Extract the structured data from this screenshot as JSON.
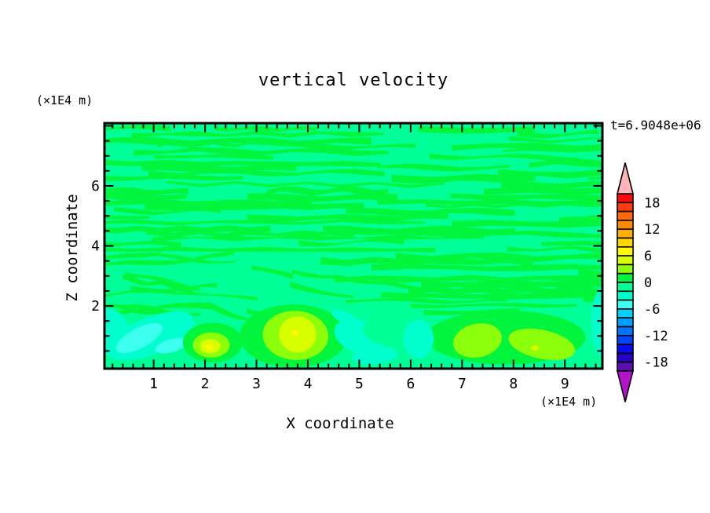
{
  "chart_data": {
    "type": "heatmap",
    "title": "vertical velocity",
    "xlabel": "X coordinate",
    "ylabel": "Z coordinate",
    "x_unit": "(×1E4 m)",
    "z_unit": "(×1E4 m)",
    "time": "t=6.9048e+06",
    "contour_interval": 2,
    "axes": {
      "x": {
        "range": [
          0.04,
          9.73
        ],
        "major": [
          1,
          2,
          3,
          4,
          5,
          6,
          7,
          8,
          9
        ],
        "labels": [
          "1",
          "2",
          "3",
          "4",
          "5",
          "6",
          "7",
          "8",
          "9"
        ],
        "minor_step": 0.2
      },
      "z": {
        "range": [
          -0.09,
          8.09
        ],
        "major": [
          2,
          4,
          6,
          8
        ],
        "labels": [
          "2",
          "4",
          "6"
        ],
        "labeled_values": [
          2,
          4,
          6
        ],
        "minor_step": 0.5
      }
    },
    "levels": [
      {
        "from": 18,
        "to": 20,
        "color": "#FA0A0A"
      },
      {
        "from": 16,
        "to": 18,
        "color": "#FF3C0A"
      },
      {
        "from": 14,
        "to": 16,
        "color": "#FF690A"
      },
      {
        "from": 12,
        "to": 14,
        "color": "#FF8C00"
      },
      {
        "from": 10,
        "to": 12,
        "color": "#FFAF00"
      },
      {
        "from": 8,
        "to": 10,
        "color": "#FFD700"
      },
      {
        "from": 6,
        "to": 8,
        "color": "#FFFA00"
      },
      {
        "from": 4,
        "to": 6,
        "color": "#D7FF00"
      },
      {
        "from": 2,
        "to": 4,
        "color": "#8CFF0A"
      },
      {
        "from": 0,
        "to": 2,
        "color": "#00F53C"
      },
      {
        "from": -2,
        "to": 0,
        "color": "#00FF96"
      },
      {
        "from": -4,
        "to": -2,
        "color": "#00FFCD"
      },
      {
        "from": -6,
        "to": -4,
        "color": "#3CFFF0"
      },
      {
        "from": -8,
        "to": -6,
        "color": "#00D2FF"
      },
      {
        "from": -10,
        "to": -8,
        "color": "#00A0FF"
      },
      {
        "from": -12,
        "to": -10,
        "color": "#0073FF"
      },
      {
        "from": -14,
        "to": -12,
        "color": "#0046FF"
      },
      {
        "from": -16,
        "to": -14,
        "color": "#0A0AF0"
      },
      {
        "from": -18,
        "to": -16,
        "color": "#2800C8"
      },
      {
        "from": -20,
        "to": -18,
        "color": "#5A0FAF"
      }
    ],
    "colorbar": {
      "tick_labels": [
        "18",
        "12",
        "6",
        "0",
        "-6",
        "-12",
        "-18"
      ],
      "tick_values": [
        18,
        12,
        6,
        0,
        -6,
        -12,
        -18
      ],
      "over_color": "#FFB4B9",
      "under_color": "#B414C8"
    },
    "field": {
      "description": "Near-zero wavy horizontal bands over most of the domain alternating between the 0..2 and -2..0 contour bands; stronger updraft/downdraft cells below z=2.",
      "stripe_band_positive": "#00F53C",
      "stripe_band_negative": "#00FF96",
      "features": [
        {
          "band_from": -4,
          "x": 0.02,
          "z": 1.15,
          "rx": 0.5,
          "rz": 0.8,
          "rot": 0
        },
        {
          "band_from": -4,
          "x": 0.95,
          "z": 1.0,
          "rx": 0.9,
          "rz": 0.62,
          "rot": -22
        },
        {
          "band_from": -6,
          "x": 0.72,
          "z": 0.93,
          "rx": 0.5,
          "rz": 0.34,
          "rot": -28
        },
        {
          "band_from": -6,
          "x": 1.35,
          "z": 0.68,
          "rx": 0.33,
          "rz": 0.22,
          "rot": -15
        },
        {
          "band_from": 0,
          "x": 2.15,
          "z": 0.78,
          "rx": 0.58,
          "rz": 0.66,
          "rot": 0
        },
        {
          "band_from": 2,
          "x": 2.12,
          "z": 0.7,
          "rx": 0.36,
          "rz": 0.42,
          "rot": 0
        },
        {
          "band_from": 4,
          "x": 2.1,
          "z": 0.66,
          "rx": 0.2,
          "rz": 0.24,
          "rot": 0
        },
        {
          "band_from": 6,
          "x": 2.08,
          "z": 0.63,
          "rx": 0.08,
          "rz": 0.1,
          "rot": 0
        },
        {
          "band_from": 0,
          "x": 3.72,
          "z": 1.0,
          "rx": 1.05,
          "rz": 1.05,
          "rot": 0
        },
        {
          "band_from": 2,
          "x": 3.76,
          "z": 1.02,
          "rx": 0.64,
          "rz": 0.82,
          "rot": 3
        },
        {
          "band_from": 4,
          "x": 3.8,
          "z": 1.05,
          "rx": 0.36,
          "rz": 0.6,
          "rot": 3
        },
        {
          "band_from": 6,
          "x": 3.74,
          "z": 1.1,
          "rx": 0.07,
          "rz": 0.09,
          "rot": 0
        },
        {
          "band_from": -4,
          "x": 5.0,
          "z": 1.0,
          "rx": 0.5,
          "rz": 0.55,
          "rot": 18
        },
        {
          "band_from": -2,
          "x": 5.4,
          "z": 1.15,
          "rx": 0.33,
          "rz": 0.4,
          "rot": 18
        },
        {
          "band_from": -4,
          "x": 5.3,
          "z": 0.35,
          "rx": 0.45,
          "rz": 0.3,
          "rot": -5
        },
        {
          "band_from": -4,
          "x": 4.72,
          "z": 1.62,
          "rx": 0.28,
          "rz": 0.2,
          "rot": 25
        },
        {
          "band_from": 0,
          "x": 7.85,
          "z": 0.95,
          "rx": 1.55,
          "rz": 0.9,
          "rot": 0
        },
        {
          "band_from": -4,
          "x": 6.15,
          "z": 0.9,
          "rx": 0.3,
          "rz": 0.65,
          "rot": 0
        },
        {
          "band_from": 2,
          "x": 7.3,
          "z": 0.85,
          "rx": 0.48,
          "rz": 0.56,
          "rot": -12
        },
        {
          "band_from": 2,
          "x": 8.55,
          "z": 0.72,
          "rx": 0.66,
          "rz": 0.48,
          "rot": 12
        },
        {
          "band_from": 4,
          "x": 8.42,
          "z": 0.6,
          "rx": 0.08,
          "rz": 0.09,
          "rot": 0
        },
        {
          "band_from": -4,
          "x": 9.75,
          "z": 1.45,
          "rx": 0.24,
          "rz": 1.15,
          "rot": 0
        }
      ]
    }
  }
}
